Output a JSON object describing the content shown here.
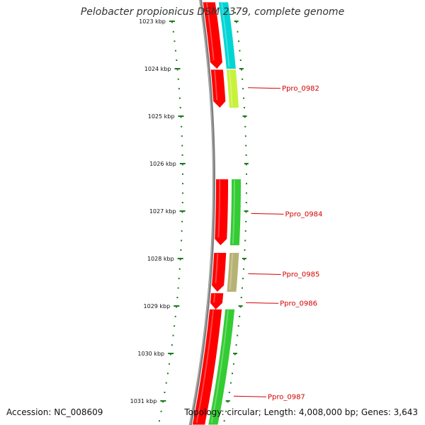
{
  "title": "Pelobacter propionicus DSM 2379, complete genome",
  "footer": {
    "accession": "Accession: NC_008609",
    "stats": "Topology: circular; Length: 4,008,000 bp; Genes: 3,643"
  },
  "colors": {
    "backbone": "#7f7f7f",
    "ruler": "#1f7a1f",
    "label": "#d40000",
    "forward_red": "#ff0000",
    "cyan": "#00d4d4",
    "green": "#33cc33",
    "olive": "#b5b274",
    "lime": "#c6f23a"
  },
  "ruler": {
    "ticks": [
      {
        "label": "1023 kbp",
        "kbp": 1023
      },
      {
        "label": "1024 kbp",
        "kbp": 1024
      },
      {
        "label": "1025 kbp",
        "kbp": 1025
      },
      {
        "label": "1026 kbp",
        "kbp": 1026
      },
      {
        "label": "1027 kbp",
        "kbp": 1027
      },
      {
        "label": "1028 kbp",
        "kbp": 1028
      },
      {
        "label": "1029 kbp",
        "kbp": 1029
      },
      {
        "label": "1030 kbp",
        "kbp": 1030
      },
      {
        "label": "1031 kbp",
        "kbp": 1031
      }
    ]
  },
  "gene_labels": [
    {
      "name": "Ppro_0982",
      "kbp": 1024.4
    },
    {
      "name": "Ppro_0984",
      "kbp": 1027.05
    },
    {
      "name": "Ppro_0985",
      "kbp": 1028.32
    },
    {
      "name": "Ppro_0986",
      "kbp": 1028.93
    },
    {
      "name": "Ppro_0987",
      "kbp": 1030.9
    }
  ],
  "features": [
    {
      "track": "inner",
      "start": 1022.6,
      "end": 1024.0,
      "color": "#ff0000",
      "arrow": true
    },
    {
      "track": "inner",
      "start": 1024.02,
      "end": 1024.82,
      "color": "#ff0000",
      "arrow": true
    },
    {
      "track": "outer",
      "start": 1022.6,
      "end": 1024.0,
      "color": "#00d4d4",
      "arrow": false
    },
    {
      "track": "outer",
      "start": 1024.02,
      "end": 1024.82,
      "color": "#c6f23a",
      "arrow": false
    },
    {
      "track": "inner",
      "start": 1026.33,
      "end": 1027.72,
      "color": "#ff0000",
      "arrow": true
    },
    {
      "track": "outer",
      "start": 1026.33,
      "end": 1027.72,
      "color": "#33cc33",
      "arrow": false
    },
    {
      "track": "inner",
      "start": 1027.88,
      "end": 1028.7,
      "color": "#ff0000",
      "arrow": true
    },
    {
      "track": "outer",
      "start": 1027.88,
      "end": 1028.7,
      "color": "#b5b274",
      "arrow": false
    },
    {
      "track": "inner",
      "start": 1028.73,
      "end": 1029.07,
      "color": "#ff0000",
      "arrow": true
    },
    {
      "track": "inner",
      "start": 1029.07,
      "end": 1031.5,
      "color": "#ff0000",
      "arrow": false
    },
    {
      "track": "outer",
      "start": 1029.07,
      "end": 1031.5,
      "color": "#33cc33",
      "arrow": false
    }
  ]
}
